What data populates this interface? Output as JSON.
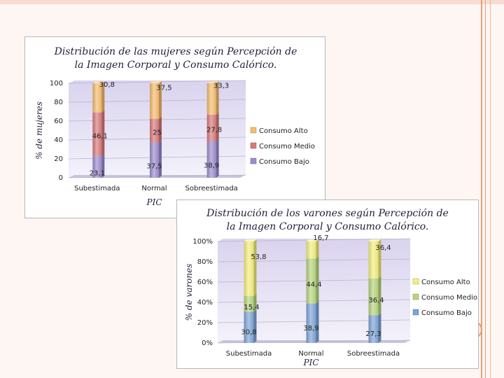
{
  "chart_data": [
    {
      "type": "bar",
      "stacked": true,
      "title_line1": "Distribución de las mujeres según Percepción de",
      "title_line2": "la Imagen Corporal y Consumo Calórico.",
      "xlabel": "PIC",
      "ylabel": "% de mujeres",
      "ylim": [
        0,
        100
      ],
      "yticks": [
        "0",
        "20",
        "40",
        "60",
        "80",
        "100"
      ],
      "categories": [
        "Subestimada",
        "Normal",
        "Sobreestimada"
      ],
      "series": [
        {
          "name": "Consumo Bajo",
          "values": [
            23.1,
            37.5,
            38.9
          ],
          "labels": [
            "23,1",
            "37,5",
            "38,9"
          ],
          "color": "#9c8ccd"
        },
        {
          "name": "Consumo Medio",
          "values": [
            46.1,
            25,
            27.8
          ],
          "labels": [
            "46,1",
            "25",
            "27,8"
          ],
          "color": "#d9797a"
        },
        {
          "name": "Consumo Alto",
          "values": [
            30.8,
            37.5,
            33.3
          ],
          "labels": [
            "30,8",
            "37,5",
            "33,3"
          ],
          "color": "#f5bc6e"
        }
      ],
      "legend_order": [
        "Consumo Alto",
        "Consumo Medio",
        "Consumo Bajo"
      ],
      "legend": "right",
      "grid": true
    },
    {
      "type": "bar",
      "stacked": true,
      "title_line1": "Distribución de los varones según Percepción de",
      "title_line2": "la Imagen Corporal y Consumo Calórico.",
      "xlabel": "PIC",
      "ylabel": "% de varones",
      "ylim": [
        0,
        100
      ],
      "yticks": [
        "0%",
        "20%",
        "40%",
        "60%",
        "80%",
        "100%"
      ],
      "categories": [
        "Subestimada",
        "Normal",
        "Sobreestimada"
      ],
      "series": [
        {
          "name": "Consumo Bajo",
          "values": [
            30.8,
            38.9,
            27.3
          ],
          "labels": [
            "30,8",
            "38,9",
            "27,3"
          ],
          "color": "#7ea4d6"
        },
        {
          "name": "Consumo Medio",
          "values": [
            15.4,
            44.4,
            36.4
          ],
          "labels": [
            "15,4",
            "44,4",
            "36,4"
          ],
          "color": "#b7d47c"
        },
        {
          "name": "Consumo Alto",
          "values": [
            53.8,
            16.7,
            36.4
          ],
          "labels": [
            "53,8",
            "16,7",
            "36,4"
          ],
          "color": "#f3ee7e"
        }
      ],
      "legend_order": [
        "Consumo Alto",
        "Consumo Medio",
        "Consumo Bajo"
      ],
      "legend": "right",
      "grid": true
    }
  ]
}
